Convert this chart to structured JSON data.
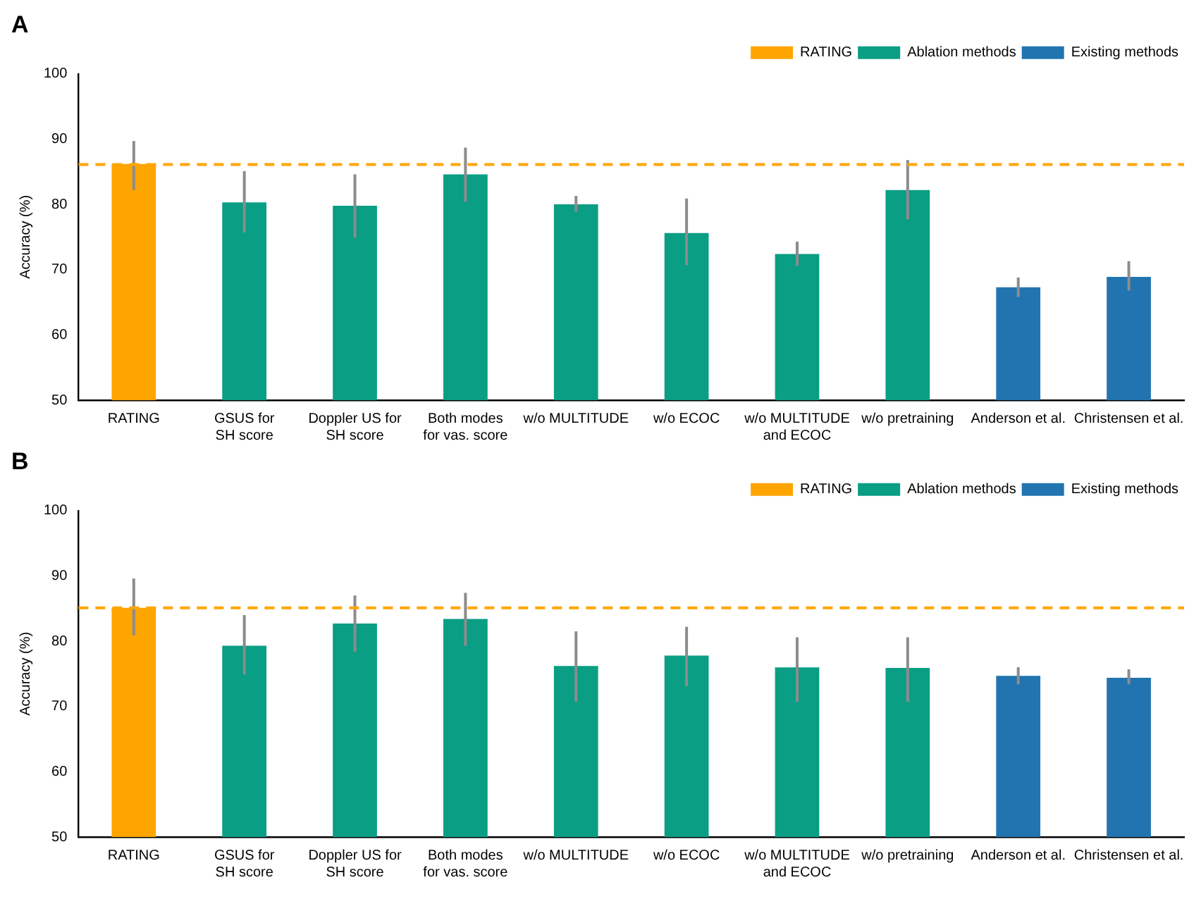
{
  "chart_data": [
    {
      "type": "bar",
      "title": "A",
      "ylabel": "Accuracy (%)",
      "categories": [
        "RATING",
        "GSUS for\nSH score",
        "Doppler US for\nSH score",
        "Both modes\nfor vas. score",
        "w/o MULTITUDE",
        "w/o ECOC",
        "w/o MULTITUDE\nand ECOC",
        "w/o pretraining",
        "Anderson et al.",
        "Christensen et al."
      ],
      "series": [
        {
          "name": "RATING",
          "color": "#ffa500",
          "values": [
            86.2,
            null,
            null,
            null,
            null,
            null,
            null,
            null,
            null,
            null
          ],
          "errors": [
            [
              82.2,
              89.7
            ],
            null,
            null,
            null,
            null,
            null,
            null,
            null,
            null,
            null
          ]
        },
        {
          "name": "Ablation methods",
          "color": "#0a9e85",
          "values": [
            null,
            80.3,
            79.8,
            84.6,
            80.0,
            75.6,
            72.4,
            82.2,
            null,
            null
          ],
          "errors": [
            null,
            [
              75.7,
              85.1
            ],
            [
              74.9,
              84.6
            ],
            [
              80.4,
              88.7
            ],
            [
              78.9,
              81.3
            ],
            [
              70.7,
              80.9
            ],
            [
              70.6,
              74.3
            ],
            [
              77.7,
              86.8
            ],
            null,
            null
          ]
        },
        {
          "name": "Existing methods",
          "color": "#2274b0",
          "values": [
            null,
            null,
            null,
            null,
            null,
            null,
            null,
            null,
            67.3,
            68.9
          ],
          "errors": [
            null,
            null,
            null,
            null,
            null,
            null,
            null,
            null,
            [
              65.8,
              68.8
            ],
            [
              66.8,
              71.3
            ]
          ]
        }
      ],
      "ylim": [
        50,
        100
      ],
      "yticks": [
        50,
        60,
        70,
        80,
        90,
        100
      ],
      "grid": false,
      "legend": "top right",
      "ref_lines": [
        {
          "axis": "y",
          "value": 86.1,
          "color": "#ffa500",
          "line_style": "dashed"
        }
      ]
    },
    {
      "type": "bar",
      "title": "B",
      "ylabel": "Accuracy (%)",
      "categories": [
        "RATING",
        "GSUS for\nSH score",
        "Doppler US for\nSH score",
        "Both modes\nfor vas. score",
        "w/o MULTITUDE",
        "w/o ECOC",
        "w/o MULTITUDE\nand ECOC",
        "w/o pretraining",
        "Anderson et al.",
        "Christensen et al."
      ],
      "series": [
        {
          "name": "RATING",
          "color": "#ffa500",
          "values": [
            85.1,
            null,
            null,
            null,
            null,
            null,
            null,
            null,
            null,
            null
          ],
          "errors": [
            [
              80.9,
              89.6
            ],
            null,
            null,
            null,
            null,
            null,
            null,
            null,
            null,
            null
          ]
        },
        {
          "name": "Ablation methods",
          "color": "#0a9e85",
          "values": [
            null,
            79.3,
            82.7,
            83.4,
            76.2,
            77.8,
            76.0,
            75.9,
            null,
            null
          ],
          "errors": [
            null,
            [
              74.9,
              84.0
            ],
            [
              78.4,
              87.0
            ],
            [
              79.3,
              87.4
            ],
            [
              70.7,
              81.5
            ],
            [
              73.1,
              82.2
            ],
            [
              70.7,
              80.6
            ],
            [
              70.7,
              80.6
            ],
            null,
            null
          ]
        },
        {
          "name": "Existing methods",
          "color": "#2274b0",
          "values": [
            null,
            null,
            null,
            null,
            null,
            null,
            null,
            null,
            74.7,
            74.4
          ],
          "errors": [
            null,
            null,
            null,
            null,
            null,
            null,
            null,
            null,
            [
              73.4,
              76.0
            ],
            [
              73.4,
              75.7
            ]
          ]
        }
      ],
      "ylim": [
        50,
        100
      ],
      "yticks": [
        50,
        60,
        70,
        80,
        90,
        100
      ],
      "grid": false,
      "legend": "top right",
      "ref_lines": [
        {
          "axis": "y",
          "value": 85.1,
          "color": "#ffa500",
          "line_style": "dashed"
        }
      ]
    }
  ]
}
